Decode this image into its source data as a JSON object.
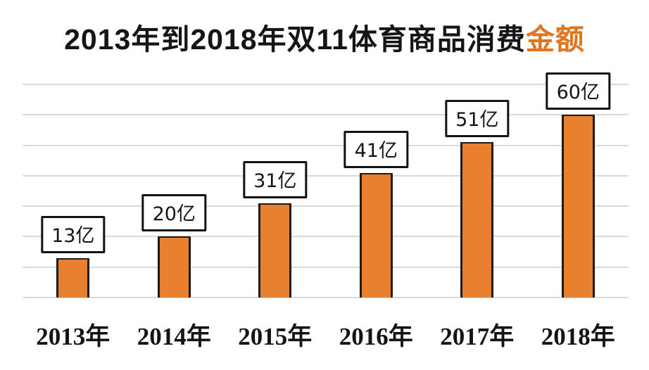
{
  "title": {
    "main": "2013年到2018年双11体育商品消费",
    "accent": "金额",
    "accent_color": "#e0761f",
    "text_color": "#151515"
  },
  "chart_data": {
    "type": "bar",
    "title": "2013年到2018年双11体育商品消费金额",
    "categories": [
      "2013年",
      "2014年",
      "2015年",
      "2016年",
      "2017年",
      "2018年"
    ],
    "values": [
      13,
      20,
      31,
      41,
      51,
      60
    ],
    "value_labels": [
      "13亿",
      "20亿",
      "31亿",
      "41亿",
      "51亿",
      "60亿"
    ],
    "unit": "亿",
    "xlabel": "",
    "ylabel": "",
    "ylim": [
      0,
      70
    ],
    "gridline_interval": 10,
    "grid": true,
    "legend": false,
    "bar_color": "#e8802d",
    "bar_border_color": "#1c1c1c",
    "gridline_color": "#d9d9d9",
    "label_box_border_color": "#111111",
    "label_box_fill": "#ffffff"
  }
}
